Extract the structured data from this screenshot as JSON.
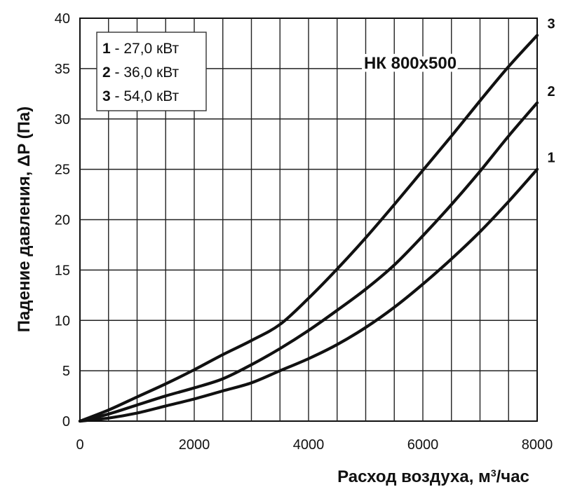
{
  "chart_data": {
    "type": "line",
    "title": "НК 800x500",
    "xlabel_main": "Расход воздуха, м",
    "xlabel_sup": "3",
    "xlabel_tail": "/час",
    "ylabel": "Падение давления, ΔP (Па)",
    "xlim": [
      0,
      8000
    ],
    "ylim": [
      0,
      40
    ],
    "x_ticks": [
      0,
      2000,
      4000,
      6000,
      8000
    ],
    "y_ticks": [
      0,
      5,
      10,
      15,
      20,
      25,
      30,
      35,
      40
    ],
    "x_tick_labels": [
      "0",
      "2000",
      "4000",
      "6000",
      "8000"
    ],
    "y_tick_labels": [
      "0",
      "5",
      "10",
      "15",
      "20",
      "25",
      "30",
      "35",
      "40"
    ],
    "x_grid_step": 500,
    "grid": true,
    "legend_position": "top-left",
    "legend": [
      {
        "num": "1",
        "text": " - 27,0  кВт"
      },
      {
        "num": "2",
        "text": " - 36,0  кВт"
      },
      {
        "num": "3",
        "text": " - 54,0  кВт"
      }
    ],
    "series": [
      {
        "name": "1",
        "points": [
          [
            0,
            0
          ],
          [
            500,
            0.3
          ],
          [
            1000,
            0.8
          ],
          [
            1500,
            1.5
          ],
          [
            2000,
            2.2
          ],
          [
            2500,
            3.0
          ],
          [
            3000,
            3.8
          ],
          [
            3500,
            5.0
          ],
          [
            4000,
            6.2
          ],
          [
            4500,
            7.6
          ],
          [
            5000,
            9.3
          ],
          [
            5500,
            11.3
          ],
          [
            6000,
            13.6
          ],
          [
            6500,
            16.1
          ],
          [
            7000,
            18.8
          ],
          [
            7500,
            21.8
          ],
          [
            8000,
            25.0
          ]
        ]
      },
      {
        "name": "2",
        "points": [
          [
            0,
            0
          ],
          [
            500,
            0.7
          ],
          [
            1000,
            1.6
          ],
          [
            1500,
            2.5
          ],
          [
            2000,
            3.3
          ],
          [
            2500,
            4.2
          ],
          [
            3000,
            5.6
          ],
          [
            3500,
            7.2
          ],
          [
            4000,
            9.0
          ],
          [
            4500,
            11.0
          ],
          [
            5000,
            13.1
          ],
          [
            5500,
            15.5
          ],
          [
            6000,
            18.4
          ],
          [
            6500,
            21.5
          ],
          [
            7000,
            24.8
          ],
          [
            7500,
            28.3
          ],
          [
            8000,
            31.6
          ]
        ]
      },
      {
        "name": "3",
        "points": [
          [
            0,
            0
          ],
          [
            500,
            1.1
          ],
          [
            1000,
            2.4
          ],
          [
            1500,
            3.7
          ],
          [
            2000,
            5.1
          ],
          [
            2500,
            6.6
          ],
          [
            3000,
            8.0
          ],
          [
            3500,
            9.6
          ],
          [
            4000,
            12.2
          ],
          [
            4500,
            15.1
          ],
          [
            5000,
            18.2
          ],
          [
            5500,
            21.5
          ],
          [
            6000,
            24.9
          ],
          [
            6500,
            28.3
          ],
          [
            7000,
            31.8
          ],
          [
            7500,
            35.2
          ],
          [
            8000,
            38.3
          ]
        ]
      }
    ]
  }
}
